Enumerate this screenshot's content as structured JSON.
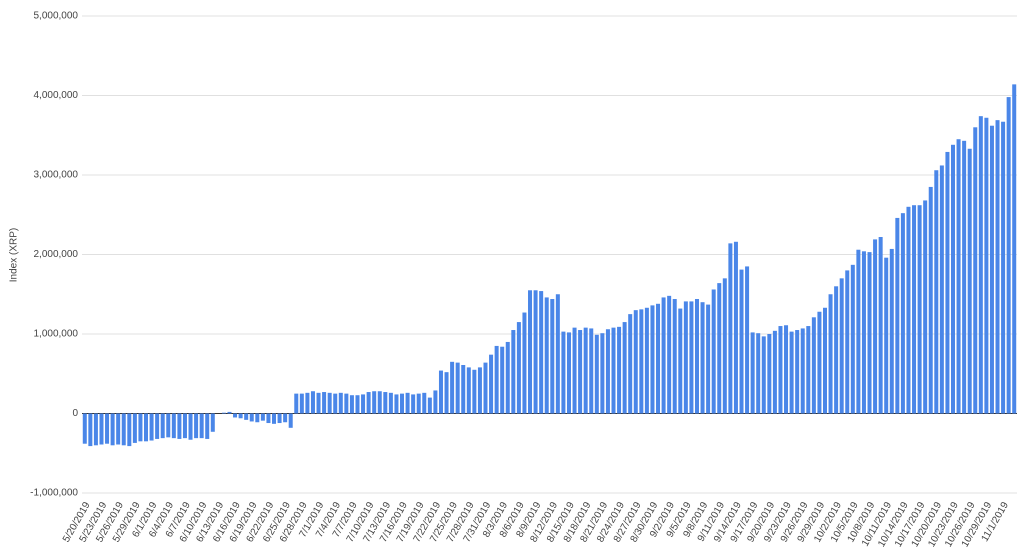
{
  "chart_data": {
    "type": "bar",
    "y_label": "Index (XRP)",
    "color": "#4a86e8",
    "grid": true,
    "ylim": [
      -1000000,
      5000000
    ],
    "yticks": [
      {
        "value": -1000000,
        "label": "-1,000,000"
      },
      0,
      {
        "value": 1000000,
        "label": "1,000,000"
      },
      {
        "value": 2000000,
        "label": "2,000,000"
      },
      {
        "value": 3000000,
        "label": "3,000,000"
      },
      {
        "value": 4000000,
        "label": "4,000,000"
      },
      {
        "value": 5000000,
        "label": "5,000,000"
      }
    ],
    "categories": [
      "5/20/2019",
      null,
      null,
      "5/23/2019",
      null,
      null,
      "5/26/2019",
      null,
      null,
      "5/29/2019",
      null,
      null,
      "6/1/2019",
      null,
      null,
      "6/4/2019",
      null,
      null,
      "6/7/2019",
      null,
      null,
      "6/10/2019",
      null,
      null,
      "6/13/2019",
      null,
      null,
      "6/16/2019",
      null,
      null,
      "6/19/2019",
      null,
      null,
      "6/22/2019",
      null,
      null,
      "6/25/2019",
      null,
      null,
      "6/28/2019",
      null,
      null,
      "7/1/2019",
      null,
      null,
      "7/4/2019",
      null,
      null,
      "7/7/2019",
      null,
      null,
      "7/10/2019",
      null,
      null,
      "7/13/2019",
      null,
      null,
      "7/16/2019",
      null,
      null,
      "7/19/2019",
      null,
      null,
      "7/22/2019",
      null,
      null,
      "7/25/2019",
      null,
      null,
      "7/28/2019",
      null,
      null,
      "7/31/2019",
      null,
      null,
      "8/3/2019",
      null,
      null,
      "8/6/2019",
      null,
      null,
      "8/9/2019",
      null,
      null,
      "8/12/2019",
      null,
      null,
      "8/15/2019",
      null,
      null,
      "8/18/2019",
      null,
      null,
      "8/21/2019",
      null,
      null,
      "8/24/2019",
      null,
      null,
      "8/27/2019",
      null,
      null,
      "8/30/2019",
      null,
      null,
      "9/2/2019",
      null,
      null,
      "9/5/2019",
      null,
      null,
      "9/8/2019",
      null,
      null,
      "9/11/2019",
      null,
      null,
      "9/14/2019",
      null,
      null,
      "9/17/2019",
      null,
      null,
      "9/20/2019",
      null,
      null,
      "9/23/2019",
      null,
      null,
      "9/26/2019",
      null,
      null,
      "9/29/2019",
      null,
      null,
      "10/2/2019",
      null,
      null,
      "10/5/2019",
      null,
      null,
      "10/8/2019",
      null,
      null,
      "10/11/2019",
      null,
      null,
      "10/14/2019",
      null,
      null,
      "10/17/2019",
      null,
      null,
      "10/20/2019",
      null,
      null,
      "10/23/2019",
      null,
      null,
      "10/26/2019",
      null,
      null,
      "10/29/2019",
      null,
      null,
      "11/1/2019",
      null,
      null
    ],
    "values": [
      -380000,
      -410000,
      -400000,
      -390000,
      -380000,
      -400000,
      -390000,
      -400000,
      -410000,
      -370000,
      -350000,
      -350000,
      -340000,
      -320000,
      -310000,
      -300000,
      -310000,
      -320000,
      -310000,
      -330000,
      -310000,
      -310000,
      -320000,
      -230000,
      0,
      10000,
      20000,
      -50000,
      -60000,
      -80000,
      -100000,
      -110000,
      -90000,
      -120000,
      -130000,
      -120000,
      -110000,
      -180000,
      250000,
      250000,
      260000,
      280000,
      260000,
      270000,
      260000,
      250000,
      260000,
      250000,
      230000,
      230000,
      240000,
      270000,
      280000,
      280000,
      270000,
      260000,
      240000,
      250000,
      260000,
      240000,
      250000,
      260000,
      200000,
      290000,
      540000,
      520000,
      650000,
      640000,
      610000,
      580000,
      550000,
      580000,
      640000,
      740000,
      850000,
      840000,
      900000,
      1050000,
      1150000,
      1270000,
      1550000,
      1550000,
      1540000,
      1460000,
      1440000,
      1500000,
      1030000,
      1020000,
      1080000,
      1050000,
      1080000,
      1070000,
      990000,
      1010000,
      1060000,
      1080000,
      1090000,
      1150000,
      1250000,
      1300000,
      1310000,
      1330000,
      1360000,
      1380000,
      1460000,
      1480000,
      1440000,
      1320000,
      1410000,
      1410000,
      1440000,
      1400000,
      1370000,
      1560000,
      1640000,
      1700000,
      2140000,
      2160000,
      1810000,
      1850000,
      1020000,
      1010000,
      970000,
      1000000,
      1040000,
      1100000,
      1110000,
      1030000,
      1050000,
      1070000,
      1100000,
      1210000,
      1280000,
      1330000,
      1500000,
      1600000,
      1700000,
      1800000,
      1870000,
      2060000,
      2040000,
      2030000,
      2190000,
      2220000,
      1960000,
      2070000,
      2460000,
      2520000,
      2600000,
      2620000,
      2620000,
      2680000,
      2850000,
      3060000,
      3120000,
      3290000,
      3380000,
      3450000,
      3430000,
      3330000,
      3600000,
      3740000,
      3720000,
      3620000,
      3690000,
      3670000,
      3980000,
      4140000
    ]
  }
}
